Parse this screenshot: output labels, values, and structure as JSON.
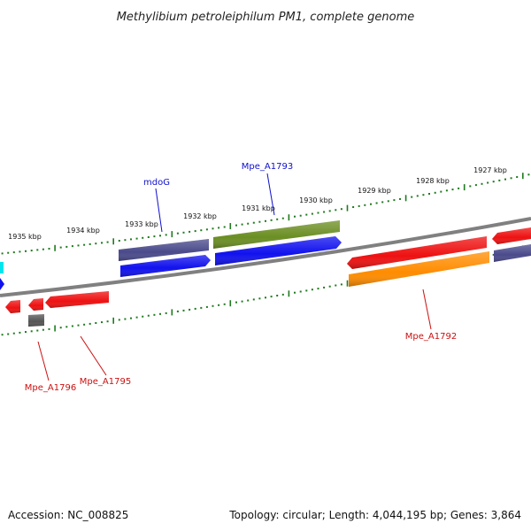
{
  "title": "Methylibium petroleiphilum PM1, complete genome",
  "footer": {
    "accession": "Accession: NC_008825",
    "summary": "Topology: circular; Length: 4,044,195 bp; Genes: 3,864"
  },
  "ticks": [
    {
      "label": "1935 kbp"
    },
    {
      "label": "1934 kbp"
    },
    {
      "label": "1933 kbp"
    },
    {
      "label": "1932 kbp"
    },
    {
      "label": "1931 kbp"
    },
    {
      "label": "1930 kbp"
    },
    {
      "label": "1929 kbp"
    },
    {
      "label": "1928 kbp"
    },
    {
      "label": "1927 kbp"
    }
  ],
  "gene_labels": [
    {
      "text": "mdoG",
      "color": "#1010cc"
    },
    {
      "text": "Mpe_A1793",
      "color": "#1010cc"
    },
    {
      "text": "Mpe_A1792",
      "color": "#cc1010"
    },
    {
      "text": "Mpe_A1796",
      "color": "#cc1010"
    },
    {
      "text": "Mpe_A1795",
      "color": "#cc1010"
    }
  ],
  "colors": {
    "backbone": "#808080",
    "tick": "#1f7a1f",
    "red": "#ee1111",
    "blue": "#1111ee",
    "slate": "#4a4a8c",
    "olive": "#6b8e23",
    "orange": "#ff8c00",
    "gray": "#555555",
    "cyan": "#00e5ee"
  }
}
